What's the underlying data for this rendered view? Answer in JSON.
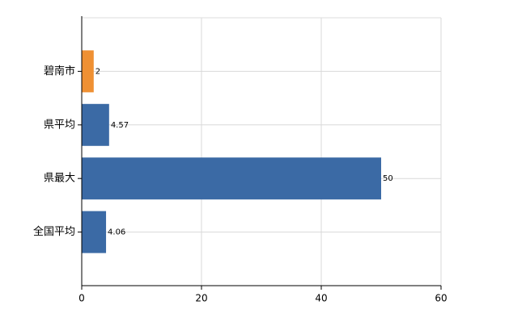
{
  "chart_data": {
    "type": "hbar",
    "categories": [
      "碧南市",
      "県平均",
      "県最大",
      "全国平均"
    ],
    "values": [
      2,
      4.57,
      50,
      4.06
    ],
    "colors": [
      "#ef9033",
      "#3b6aa5",
      "#3b6aa5",
      "#3b6aa5"
    ],
    "xlim": [
      0,
      60
    ],
    "xticks": [
      0,
      20,
      40,
      60
    ],
    "grid": true
  }
}
